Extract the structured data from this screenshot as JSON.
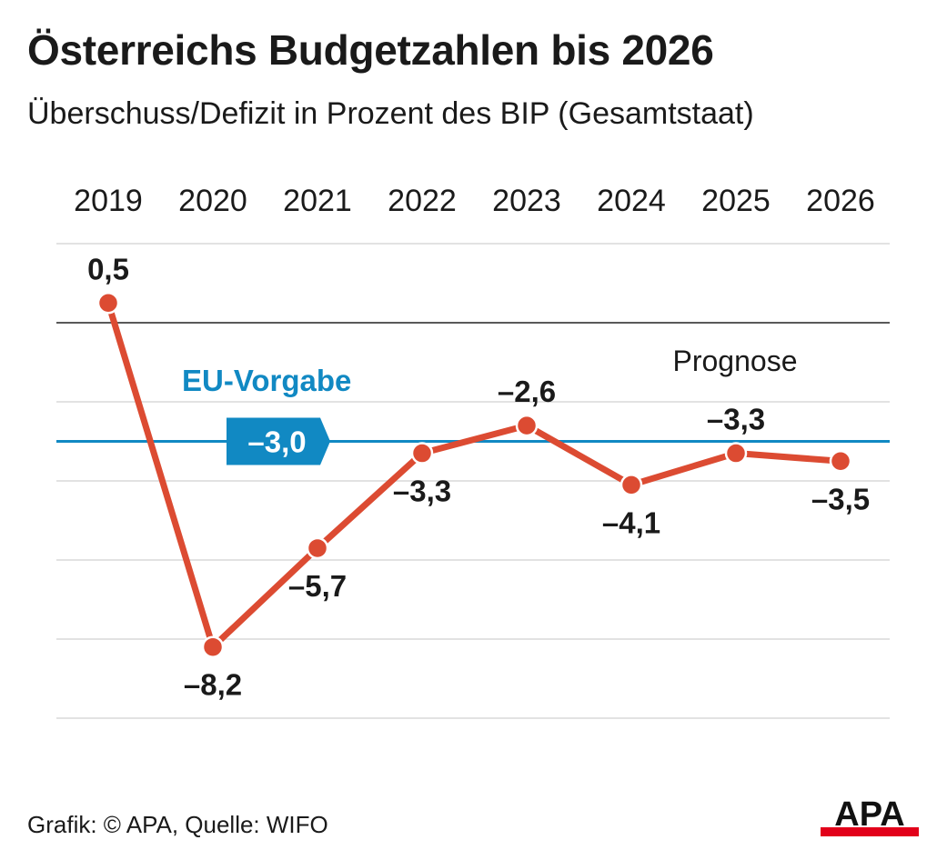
{
  "header": {
    "title": "Österreichs Budgetzahlen bis 2026",
    "subtitle": "Überschuss/Defizit in Prozent des BIP (Gesamtstaat)"
  },
  "chart_data": {
    "type": "line",
    "x": [
      "2019",
      "2020",
      "2021",
      "2022",
      "2023",
      "2024",
      "2025",
      "2026"
    ],
    "series": [
      {
        "values": [
          0.5,
          -8.2,
          -5.7,
          -3.3,
          -2.6,
          -4.1,
          -3.3,
          -3.5
        ],
        "labels": [
          "0,5",
          "–8,2",
          "–5,7",
          "–3,3",
          "–2,6",
          "–4,1",
          "–3,3",
          "–3,5"
        ]
      }
    ],
    "ylim": [
      -10,
      2
    ],
    "grid": true,
    "reference_line": {
      "name": "EU-Vorgabe",
      "value": -3.0,
      "label": "–3,0"
    },
    "annotations": [
      "Prognose"
    ],
    "colors": {
      "series": "#dc4b32",
      "reference": "#1189c3",
      "grid": "#d9d9d9",
      "zero": "#222222"
    }
  },
  "footer": {
    "credit": "Grafik: © APA, Quelle: WIFO",
    "logo_text": "APA"
  }
}
